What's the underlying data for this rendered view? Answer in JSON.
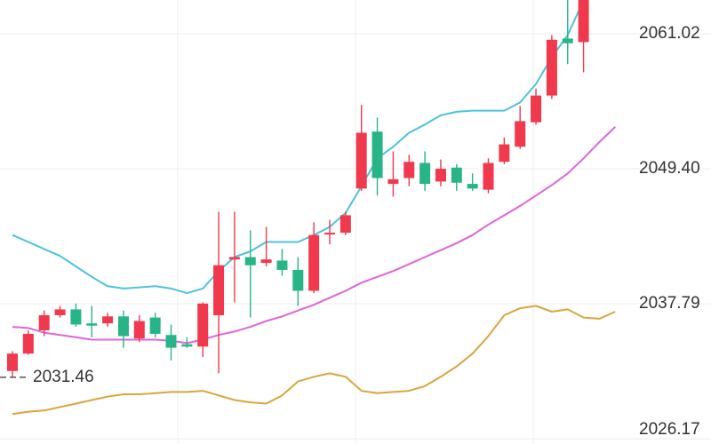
{
  "chart_data": {
    "type": "candlestick",
    "open": [
      2032.0,
      2033.5,
      2035.5,
      2036.8,
      2037.3,
      2036.1,
      2036.1,
      2036.7,
      2034.8,
      2036.6,
      2035.1,
      2034.3,
      2034.1,
      2036.8,
      2041.6,
      2041.8,
      2041.3,
      2041.5,
      2040.7,
      2038.9,
      2043.8,
      2043.9,
      2047.7,
      2052.6,
      2048.1,
      2048.6,
      2049.9,
      2048.3,
      2049.5,
      2048.1,
      2047.6,
      2050.0,
      2051.3,
      2053.4,
      2055.7,
      2060.6,
      2060.3,
      null,
      null
    ],
    "high": [
      2033.7,
      2035.5,
      2037.2,
      2037.6,
      2037.8,
      2037.6,
      2037.0,
      2037.2,
      2036.8,
      2037.0,
      2036.0,
      2034.9,
      2037.9,
      2045.7,
      2045.7,
      2044.1,
      2044.4,
      2042.5,
      2041.8,
      2044.8,
      2045.0,
      2045.7,
      2054.9,
      2053.8,
      2050.9,
      2050.6,
      2050.9,
      2050.2,
      2049.8,
      2049.0,
      2050.3,
      2052.1,
      2054.8,
      2056.3,
      2060.9,
      2064.5,
      2064.6,
      null,
      null
    ],
    "low": [
      2031.46,
      2033.4,
      2035.0,
      2036.6,
      2035.8,
      2034.9,
      2035.8,
      2034.0,
      2034.5,
      2034.9,
      2032.9,
      2034.0,
      2033.2,
      2031.8,
      2037.9,
      2036.6,
      2041.0,
      2040.2,
      2037.6,
      2038.7,
      2042.9,
      2043.7,
      2047.5,
      2047.1,
      2047.0,
      2047.9,
      2047.5,
      2047.9,
      2047.5,
      2047.5,
      2047.3,
      2049.8,
      2051.1,
      2053.2,
      2055.4,
      2058.4,
      2057.7,
      null,
      null
    ],
    "close": [
      2033.5,
      2035.2,
      2036.8,
      2037.3,
      2036.0,
      2035.9,
      2036.7,
      2035.0,
      2036.3,
      2035.2,
      2034.0,
      2034.1,
      2037.8,
      2041.1,
      2041.8,
      2041.1,
      2041.6,
      2040.7,
      2038.9,
      2043.7,
      2043.9,
      2045.4,
      2052.5,
      2048.6,
      2048.5,
      2050.0,
      2048.1,
      2049.4,
      2048.2,
      2047.7,
      2049.9,
      2051.5,
      2053.5,
      2055.7,
      2060.5,
      2060.2,
      2064.2,
      null,
      null
    ],
    "up_color": "#f0394d",
    "down_color": "#27b587",
    "lines": [
      {
        "color": "#4cc3dc",
        "values": [
          2043.7,
          2043.1,
          2042.5,
          2041.9,
          2041.0,
          2040.1,
          2039.3,
          2039.1,
          2039.2,
          2039.3,
          2039.1,
          2038.7,
          2039.1,
          2040.6,
          2041.8,
          2042.3,
          2043.1,
          2043.1,
          2043.1,
          2043.7,
          2044.4,
          2045.6,
          2047.9,
          2050.3,
          2051.3,
          2052.5,
          2053.2,
          2054.0,
          2054.3,
          2054.4,
          2054.4,
          2054.4,
          2055.1,
          2056.7,
          2059.0,
          2060.9,
          2063.9,
          null,
          null
        ]
      },
      {
        "color": "#e064d9",
        "values": [
          2035.8,
          2035.7,
          2035.3,
          2035.1,
          2034.9,
          2034.7,
          2034.7,
          2034.7,
          2034.7,
          2034.7,
          2034.6,
          2034.4,
          2034.7,
          2035.1,
          2035.4,
          2035.8,
          2036.3,
          2036.7,
          2037.2,
          2037.7,
          2038.3,
          2038.9,
          2039.6,
          2040.1,
          2040.6,
          2041.2,
          2041.8,
          2042.4,
          2043.0,
          2043.7,
          2044.6,
          2045.4,
          2046.2,
          2047.1,
          2048.0,
          2049.0,
          2050.3,
          2051.7,
          2053.0
        ]
      },
      {
        "color": "#d9a63e",
        "values": [
          2028.3,
          2028.5,
          2028.6,
          2028.9,
          2029.2,
          2029.5,
          2029.8,
          2030.0,
          2030.0,
          2030.1,
          2030.2,
          2030.2,
          2030.3,
          2029.9,
          2029.5,
          2029.3,
          2029.2,
          2029.9,
          2031.1,
          2031.5,
          2031.8,
          2031.5,
          2030.3,
          2030.1,
          2030.2,
          2030.3,
          2030.7,
          2031.5,
          2032.4,
          2033.5,
          2035.0,
          2036.8,
          2037.4,
          2037.6,
          2037.1,
          2037.3,
          2036.6,
          2036.5,
          2037.1
        ]
      }
    ],
    "min_price": 2031.46,
    "ylim": [
      2025.72,
      2063.92
    ],
    "yticks": [
      2061.02,
      {
        "value": 2049.4,
        "label": "2049.40"
      },
      2037.79,
      2026.17
    ],
    "grid": true
  }
}
